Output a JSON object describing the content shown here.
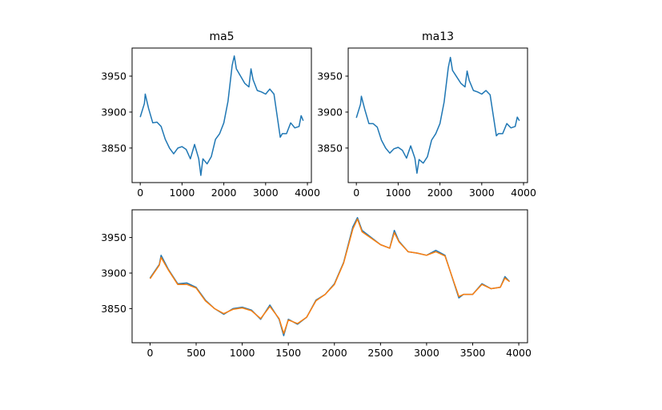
{
  "chart_data": [
    {
      "type": "line",
      "title": "ma5",
      "x": [
        0,
        100,
        120,
        200,
        300,
        400,
        500,
        600,
        700,
        800,
        900,
        1000,
        1100,
        1200,
        1300,
        1400,
        1450,
        1500,
        1600,
        1700,
        1800,
        1900,
        2000,
        2100,
        2200,
        2250,
        2300,
        2400,
        2500,
        2600,
        2650,
        2700,
        2800,
        2900,
        3000,
        3100,
        3200,
        3300,
        3350,
        3400,
        3500,
        3600,
        3700,
        3800,
        3850,
        3900
      ],
      "series": [
        {
          "color": "#1f77b4",
          "values": [
            3893,
            3912,
            3925,
            3905,
            3885,
            3886,
            3880,
            3862,
            3850,
            3842,
            3850,
            3852,
            3848,
            3835,
            3855,
            3835,
            3812,
            3835,
            3828,
            3838,
            3862,
            3870,
            3885,
            3915,
            3965,
            3978,
            3960,
            3950,
            3940,
            3935,
            3960,
            3945,
            3930,
            3928,
            3925,
            3932,
            3925,
            3885,
            3865,
            3870,
            3870,
            3885,
            3878,
            3880,
            3895,
            3888
          ]
        }
      ],
      "xlim": [
        -195,
        4095
      ],
      "xticks": [
        0,
        1000,
        2000,
        3000,
        4000
      ],
      "ylim": [
        3802,
        3989
      ],
      "yticks": [
        3850,
        3900,
        3950
      ]
    },
    {
      "type": "line",
      "title": "ma13",
      "x": [
        0,
        100,
        120,
        200,
        300,
        400,
        500,
        600,
        700,
        800,
        900,
        1000,
        1100,
        1200,
        1300,
        1400,
        1450,
        1500,
        1600,
        1700,
        1800,
        1900,
        2000,
        2100,
        2200,
        2250,
        2300,
        2400,
        2500,
        2600,
        2650,
        2700,
        2800,
        2900,
        3000,
        3100,
        3200,
        3300,
        3350,
        3400,
        3500,
        3600,
        3700,
        3800,
        3850,
        3900
      ],
      "series": [
        {
          "color": "#1f77b4",
          "values": [
            3892,
            3911,
            3922,
            3904,
            3884,
            3884,
            3879,
            3861,
            3850,
            3843,
            3849,
            3851,
            3847,
            3836,
            3853,
            3836,
            3815,
            3834,
            3829,
            3838,
            3861,
            3870,
            3884,
            3914,
            3962,
            3976,
            3958,
            3949,
            3940,
            3935,
            3957,
            3944,
            3930,
            3928,
            3925,
            3930,
            3924,
            3886,
            3867,
            3870,
            3870,
            3884,
            3878,
            3880,
            3893,
            3888
          ]
        }
      ],
      "xlim": [
        -195,
        4095
      ],
      "xticks": [
        0,
        1000,
        2000,
        3000,
        4000
      ],
      "ylim": [
        3802,
        3989
      ],
      "yticks": [
        3850,
        3900,
        3950
      ]
    },
    {
      "type": "line",
      "x": [
        0,
        100,
        120,
        200,
        300,
        400,
        500,
        600,
        700,
        800,
        900,
        1000,
        1100,
        1200,
        1300,
        1400,
        1450,
        1500,
        1600,
        1700,
        1800,
        1900,
        2000,
        2100,
        2200,
        2250,
        2300,
        2400,
        2500,
        2600,
        2650,
        2700,
        2800,
        2900,
        3000,
        3100,
        3200,
        3300,
        3350,
        3400,
        3500,
        3600,
        3700,
        3800,
        3850,
        3900
      ],
      "series": [
        {
          "color": "#1f77b4",
          "values": [
            3893,
            3912,
            3925,
            3905,
            3885,
            3886,
            3880,
            3862,
            3850,
            3842,
            3850,
            3852,
            3848,
            3835,
            3855,
            3835,
            3812,
            3835,
            3828,
            3838,
            3862,
            3870,
            3885,
            3915,
            3965,
            3978,
            3960,
            3950,
            3940,
            3935,
            3960,
            3945,
            3930,
            3928,
            3925,
            3932,
            3925,
            3885,
            3865,
            3870,
            3870,
            3885,
            3878,
            3880,
            3895,
            3888
          ]
        },
        {
          "color": "#ff7f0e",
          "values": [
            3892,
            3911,
            3922,
            3904,
            3884,
            3884,
            3879,
            3861,
            3850,
            3843,
            3849,
            3851,
            3847,
            3836,
            3853,
            3836,
            3815,
            3834,
            3829,
            3838,
            3861,
            3870,
            3884,
            3914,
            3962,
            3976,
            3958,
            3949,
            3940,
            3935,
            3957,
            3944,
            3930,
            3928,
            3925,
            3930,
            3924,
            3886,
            3867,
            3870,
            3870,
            3884,
            3878,
            3880,
            3893,
            3888
          ]
        }
      ],
      "xlim": [
        -195,
        4095
      ],
      "xticks": [
        0,
        500,
        1000,
        1500,
        2000,
        2500,
        3000,
        3500,
        4000
      ],
      "ylim": [
        3802,
        3989
      ],
      "yticks": [
        3850,
        3900,
        3950
      ]
    }
  ]
}
